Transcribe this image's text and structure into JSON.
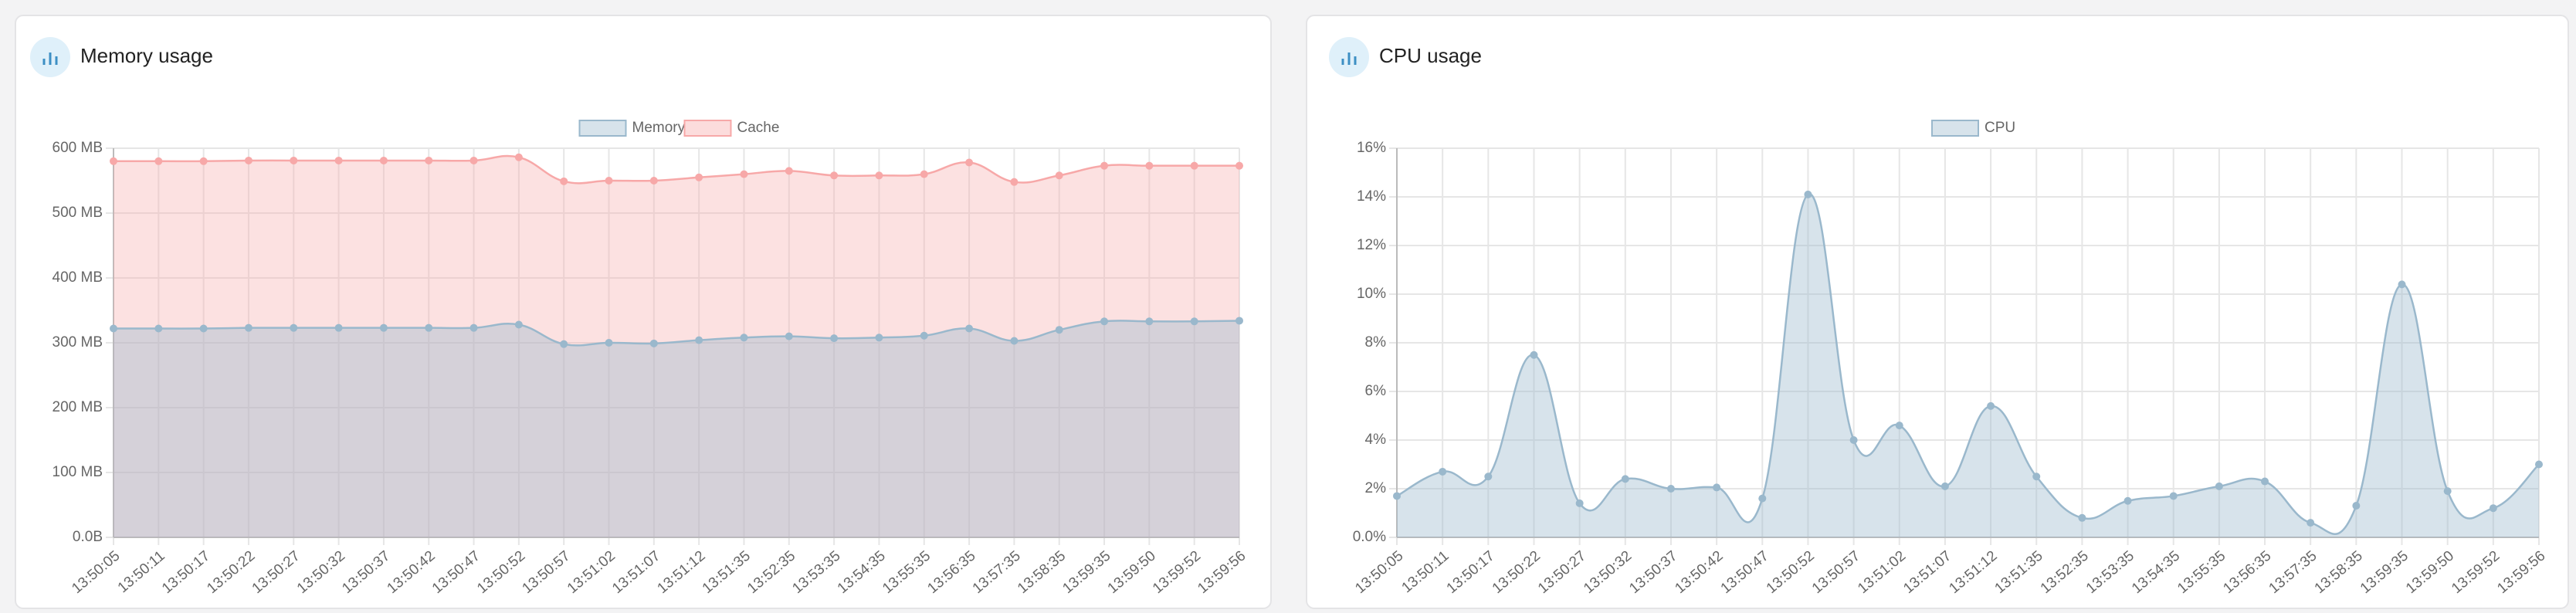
{
  "chart_data": [
    {
      "type": "area",
      "title": "Memory usage",
      "legend": "top",
      "grid": true,
      "categories": [
        "13:50:05",
        "13:50:11",
        "13:50:17",
        "13:50:22",
        "13:50:27",
        "13:50:32",
        "13:50:37",
        "13:50:42",
        "13:50:47",
        "13:50:52",
        "13:50:57",
        "13:51:02",
        "13:51:07",
        "13:51:12",
        "13:51:35",
        "13:52:35",
        "13:53:35",
        "13:54:35",
        "13:55:35",
        "13:56:35",
        "13:57:35",
        "13:58:35",
        "13:59:35",
        "13:59:50",
        "13:59:52",
        "13:59:56"
      ],
      "series": [
        {
          "name": "Memory",
          "color": "#9ab8cc",
          "values": [
            322,
            322,
            322,
            323,
            323,
            323,
            323,
            323,
            323,
            328,
            298,
            300,
            299,
            304,
            308,
            310,
            307,
            308,
            311,
            322,
            303,
            320,
            333,
            333,
            333,
            334
          ]
        },
        {
          "name": "Cache",
          "color": "#f7a8a8",
          "values": [
            580,
            580,
            580,
            581,
            581,
            581,
            581,
            581,
            581,
            586,
            549,
            550,
            550,
            555,
            560,
            565,
            558,
            558,
            560,
            578,
            548,
            558,
            573,
            573,
            573,
            573
          ]
        }
      ],
      "ylim": [
        0,
        600
      ],
      "yticks": [
        {
          "value": 0,
          "label": "0.0B"
        },
        {
          "value": 100,
          "label": "100 MB"
        },
        {
          "value": 200,
          "label": "200 MB"
        },
        {
          "value": 300,
          "label": "300 MB"
        },
        {
          "value": 400,
          "label": "400 MB"
        },
        {
          "value": 500,
          "label": "500 MB"
        },
        {
          "value": 600,
          "label": "600 MB"
        }
      ]
    },
    {
      "type": "area",
      "title": "CPU usage",
      "legend": "top",
      "grid": true,
      "categories": [
        "13:50:05",
        "13:50:11",
        "13:50:17",
        "13:50:22",
        "13:50:27",
        "13:50:32",
        "13:50:37",
        "13:50:42",
        "13:50:47",
        "13:50:52",
        "13:50:57",
        "13:51:02",
        "13:51:07",
        "13:51:12",
        "13:51:35",
        "13:52:35",
        "13:53:35",
        "13:54:35",
        "13:55:35",
        "13:56:35",
        "13:57:35",
        "13:58:35",
        "13:59:35",
        "13:59:50",
        "13:59:52",
        "13:59:56"
      ],
      "series": [
        {
          "name": "CPU",
          "color": "#9ab8cc",
          "values": [
            1.7,
            2.7,
            2.5,
            7.5,
            1.4,
            2.4,
            2.0,
            2.05,
            1.6,
            14.1,
            4.0,
            4.6,
            2.1,
            5.4,
            2.5,
            0.8,
            1.5,
            1.7,
            2.1,
            2.3,
            0.6,
            1.3,
            10.4,
            1.9,
            1.2,
            3.0
          ]
        }
      ],
      "ylim": [
        0,
        16
      ],
      "yticks": [
        {
          "value": 0,
          "label": "0.0%"
        },
        {
          "value": 2,
          "label": "2%"
        },
        {
          "value": 4,
          "label": "4%"
        },
        {
          "value": 6,
          "label": "6%"
        },
        {
          "value": 8,
          "label": "8%"
        },
        {
          "value": 10,
          "label": "10%"
        },
        {
          "value": 12,
          "label": "12%"
        },
        {
          "value": 14,
          "label": "14%"
        },
        {
          "value": 16,
          "label": "16%"
        }
      ]
    }
  ]
}
